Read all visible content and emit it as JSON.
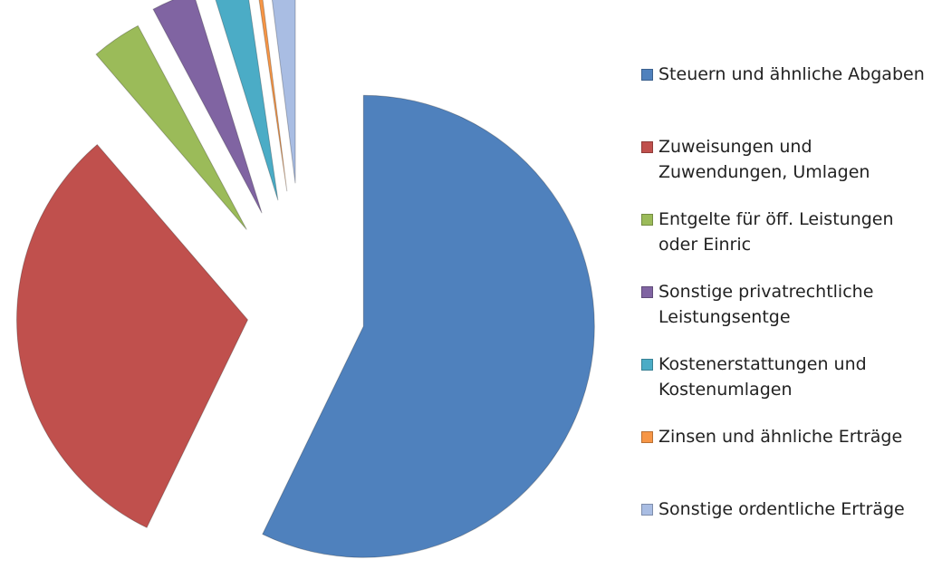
{
  "chart_data": {
    "type": "pie",
    "categories": [
      "Steuern und ähnliche Abgaben",
      "Zuweisungen und Zuwendungen, Umlagen",
      "Entgelte für öff. Leistungen oder Einric",
      "Sonstige privatrechtliche Leistungsentge",
      "Kostenerstattungen und Kostenumlagen",
      "Zinsen und ähnliche Erträge",
      "Sonstige ordentliche Erträge"
    ],
    "values": [
      57.2,
      31.5,
      3.5,
      3,
      2.5,
      0.3,
      2
    ],
    "colors": [
      "#4f81bd",
      "#c0504d",
      "#9bbb59",
      "#8064a2",
      "#4bacc6",
      "#f79646",
      "#a9bde3"
    ],
    "legend": "right"
  }
}
